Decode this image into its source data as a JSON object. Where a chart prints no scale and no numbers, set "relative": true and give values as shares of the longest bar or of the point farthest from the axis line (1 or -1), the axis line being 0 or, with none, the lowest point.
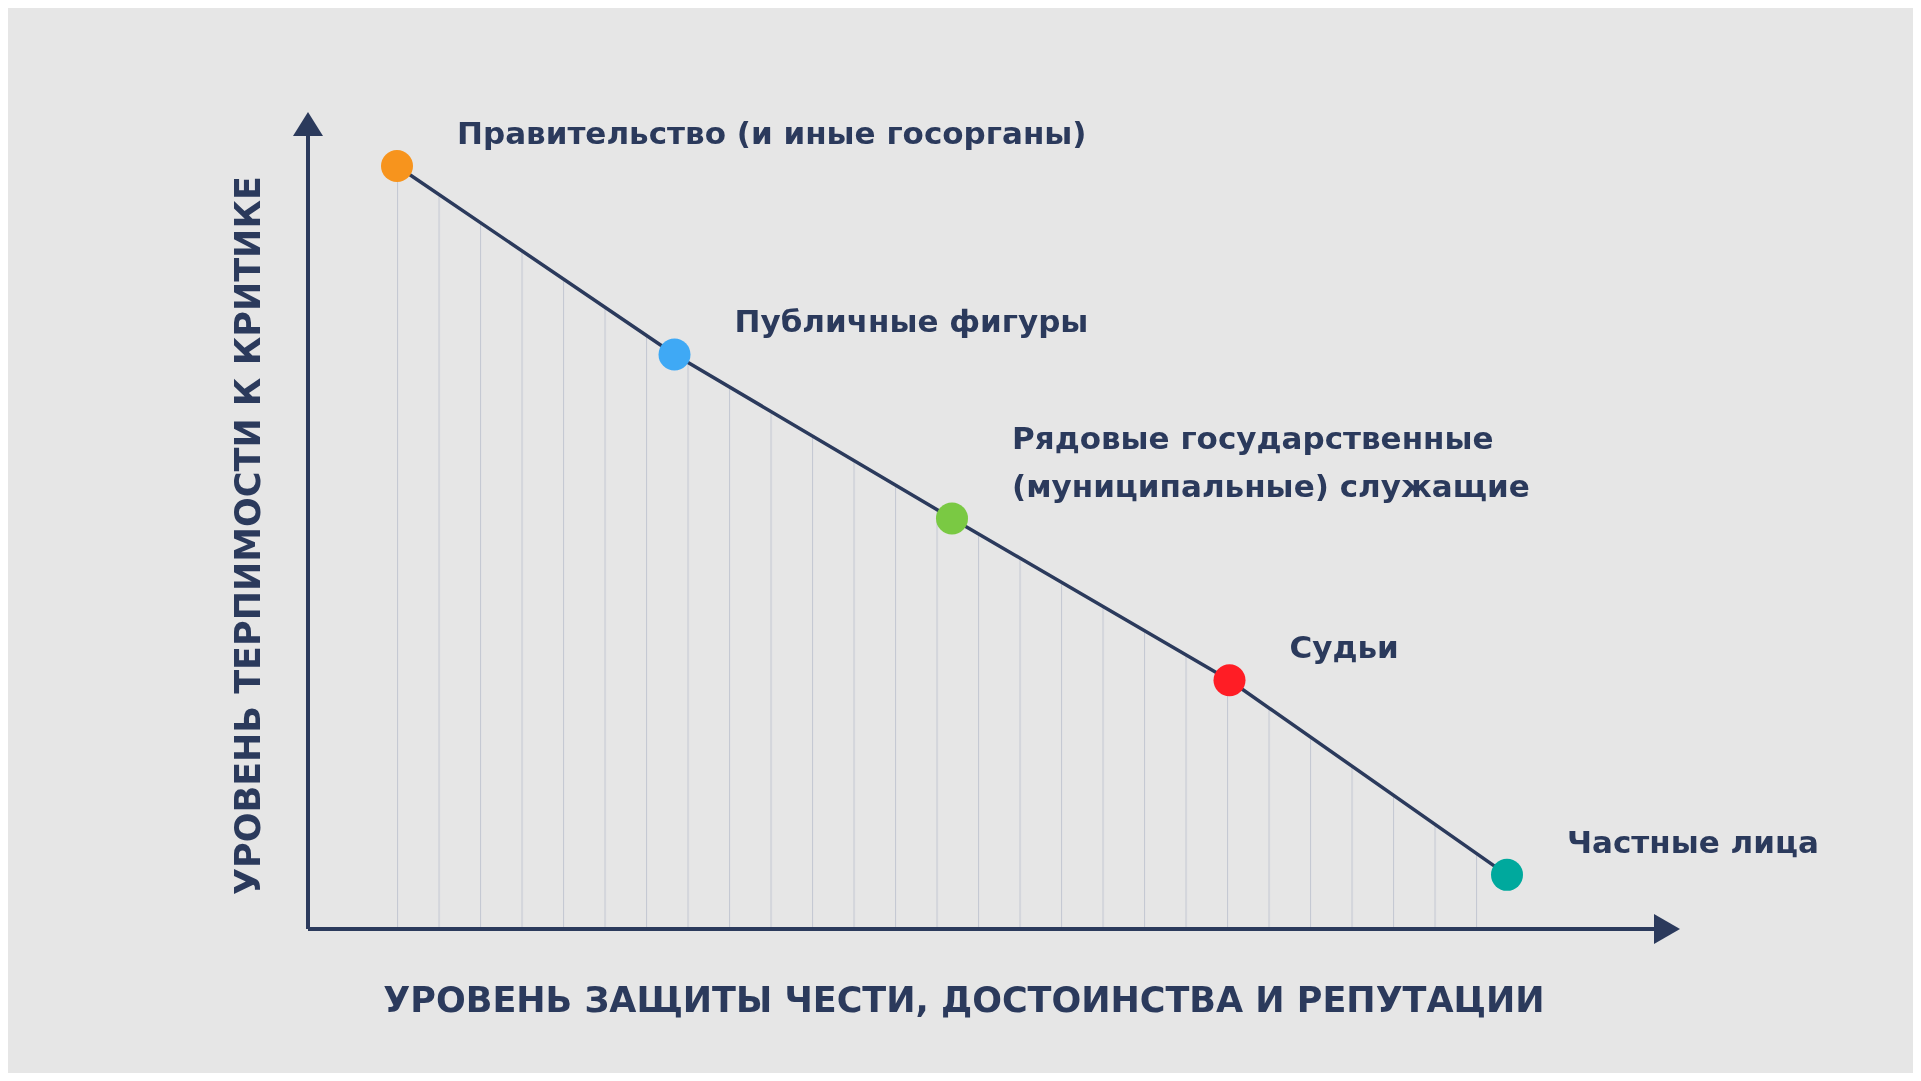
{
  "chart_data": {
    "type": "area",
    "relative": true,
    "xlabel": "УРОВЕНЬ ЗАЩИТЫ ЧЕСТИ, ДОСТОИНСТВА И РЕПУТАЦИИ",
    "ylabel": "УРОВЕНЬ ТЕРПИМОСТИ К КРИТИКЕ",
    "categories": [
      null,
      null,
      null,
      null,
      null
    ],
    "marker": "circle",
    "series": [
      {
        "color": "#2b3a5c",
        "colors": [
          "#f7941d",
          "#3fa9f5",
          "#7ac943",
          "#ff1d25",
          "#00a99d"
        ],
        "values": [
          1,
          0.753,
          0.538,
          0.326,
          0.071
        ]
      }
    ],
    "annotations": [
      "Правительство (и иные госорганы)",
      "Публичные фигуры",
      "Рядовые государственные\n(муниципальные) служащие",
      "Судьи",
      "Частные лица"
    ]
  }
}
